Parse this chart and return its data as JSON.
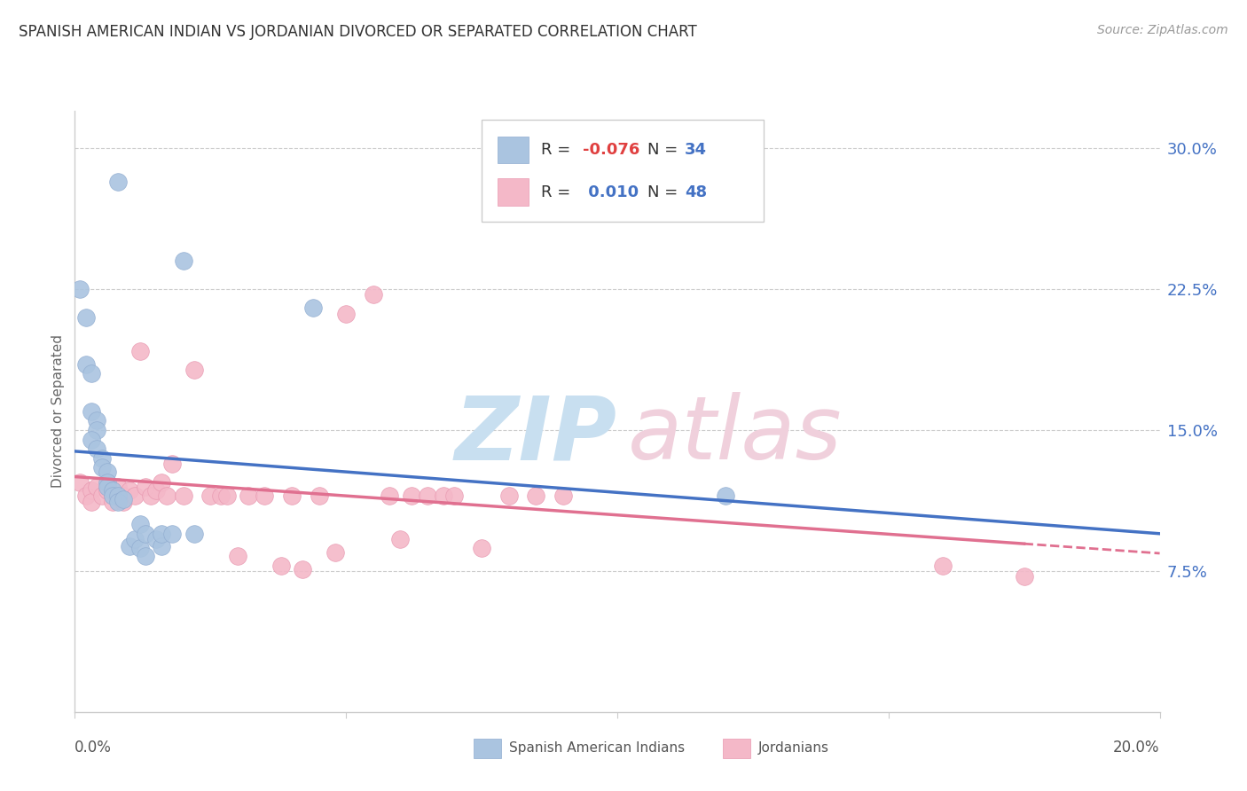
{
  "title": "SPANISH AMERICAN INDIAN VS JORDANIAN DIVORCED OR SEPARATED CORRELATION CHART",
  "source": "Source: ZipAtlas.com",
  "ylabel": "Divorced or Separated",
  "y_ticks": [
    0.0,
    0.075,
    0.15,
    0.225,
    0.3
  ],
  "y_tick_labels": [
    "",
    "7.5%",
    "15.0%",
    "22.5%",
    "30.0%"
  ],
  "x_range": [
    0.0,
    0.2
  ],
  "y_range": [
    0.0,
    0.32
  ],
  "legend_blue_R": "-0.076",
  "legend_blue_N": "34",
  "legend_pink_R": "0.010",
  "legend_pink_N": "48",
  "legend_label_blue": "Spanish American Indians",
  "legend_label_pink": "Jordanians",
  "blue_line_color": "#4472c4",
  "pink_line_color": "#e07090",
  "blue_dot_color": "#aac4e0",
  "pink_dot_color": "#f4b8c8",
  "blue_dot_edge": "#90acd0",
  "pink_dot_edge": "#e898b0",
  "grid_color": "#cccccc",
  "blue_points_x": [
    0.008,
    0.044,
    0.001,
    0.002,
    0.002,
    0.003,
    0.003,
    0.004,
    0.004,
    0.003,
    0.004,
    0.005,
    0.005,
    0.006,
    0.006,
    0.006,
    0.007,
    0.007,
    0.008,
    0.008,
    0.009,
    0.01,
    0.011,
    0.012,
    0.012,
    0.013,
    0.013,
    0.015,
    0.016,
    0.016,
    0.018,
    0.02,
    0.022,
    0.12
  ],
  "blue_points_y": [
    0.282,
    0.215,
    0.225,
    0.21,
    0.185,
    0.18,
    0.16,
    0.155,
    0.15,
    0.145,
    0.14,
    0.135,
    0.13,
    0.128,
    0.122,
    0.12,
    0.118,
    0.115,
    0.115,
    0.112,
    0.113,
    0.088,
    0.092,
    0.1,
    0.087,
    0.083,
    0.095,
    0.092,
    0.088,
    0.095,
    0.095,
    0.24,
    0.095,
    0.115
  ],
  "pink_points_x": [
    0.001,
    0.002,
    0.003,
    0.003,
    0.004,
    0.005,
    0.006,
    0.007,
    0.007,
    0.008,
    0.009,
    0.009,
    0.01,
    0.011,
    0.012,
    0.013,
    0.014,
    0.015,
    0.016,
    0.017,
    0.018,
    0.02,
    0.022,
    0.025,
    0.027,
    0.028,
    0.03,
    0.032,
    0.035,
    0.038,
    0.04,
    0.042,
    0.045,
    0.048,
    0.05,
    0.055,
    0.058,
    0.06,
    0.062,
    0.065,
    0.068,
    0.07,
    0.075,
    0.08,
    0.085,
    0.09,
    0.16,
    0.175
  ],
  "pink_points_y": [
    0.122,
    0.115,
    0.118,
    0.112,
    0.12,
    0.115,
    0.118,
    0.115,
    0.112,
    0.12,
    0.115,
    0.112,
    0.118,
    0.115,
    0.192,
    0.12,
    0.115,
    0.118,
    0.122,
    0.115,
    0.132,
    0.115,
    0.182,
    0.115,
    0.115,
    0.115,
    0.083,
    0.115,
    0.115,
    0.078,
    0.115,
    0.076,
    0.115,
    0.085,
    0.212,
    0.222,
    0.115,
    0.092,
    0.115,
    0.115,
    0.115,
    0.115,
    0.087,
    0.115,
    0.115,
    0.115,
    0.078,
    0.072
  ]
}
